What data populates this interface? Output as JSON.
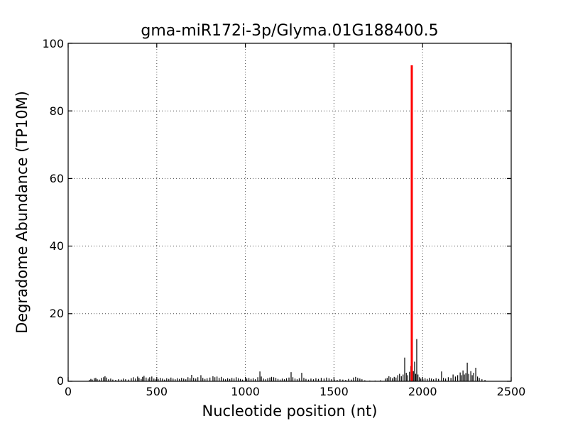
{
  "chart_data": {
    "type": "bar",
    "title": "gma-miR172i-3p/Glyma.01G188400.5",
    "xlabel": "Nucleotide position (nt)",
    "ylabel": "Degradome Abundance (TP10M)",
    "xlim": [
      0,
      2500
    ],
    "ylim": [
      0,
      100
    ],
    "x_ticks": [
      "0",
      "500",
      "1000",
      "1500",
      "2000",
      "2500"
    ],
    "y_ticks": [
      "0",
      "20",
      "40",
      "60",
      "80",
      "100"
    ],
    "x_tick_values": [
      0,
      500,
      1000,
      1500,
      2000,
      2500
    ],
    "y_tick_values": [
      0,
      20,
      40,
      60,
      80,
      100
    ],
    "grid": {
      "style": "dotted",
      "x_values": [
        500,
        1000,
        1500,
        2000
      ],
      "y_values": [
        20,
        40,
        60,
        80
      ]
    },
    "legend": "none",
    "colors": {
      "background": "#ffffff",
      "axis": "#000000",
      "bars": "#000000",
      "target_peak": "#ff0000",
      "grid": "#4a4a4a"
    },
    "target_peak": {
      "x": 1939,
      "y": 93.5
    },
    "points": [
      [
        120,
        0.4
      ],
      [
        128,
        0.7
      ],
      [
        136,
        0.5
      ],
      [
        148,
        0.9
      ],
      [
        156,
        1.0
      ],
      [
        164,
        0.6
      ],
      [
        176,
        0.5
      ],
      [
        188,
        1.0
      ],
      [
        200,
        1.2
      ],
      [
        208,
        1.5
      ],
      [
        216,
        1.1
      ],
      [
        228,
        0.6
      ],
      [
        240,
        0.8
      ],
      [
        252,
        0.5
      ],
      [
        268,
        0.4
      ],
      [
        284,
        0.6
      ],
      [
        300,
        0.5
      ],
      [
        312,
        0.8
      ],
      [
        324,
        0.6
      ],
      [
        340,
        0.5
      ],
      [
        356,
        0.9
      ],
      [
        368,
        1.2
      ],
      [
        380,
        0.8
      ],
      [
        392,
        1.4
      ],
      [
        400,
        1.0
      ],
      [
        412,
        0.7
      ],
      [
        420,
        1.3
      ],
      [
        428,
        1.6
      ],
      [
        440,
        1.1
      ],
      [
        452,
        0.8
      ],
      [
        460,
        1.2
      ],
      [
        472,
        1.4
      ],
      [
        484,
        0.8
      ],
      [
        496,
        0.6
      ],
      [
        508,
        0.7
      ],
      [
        520,
        1.0
      ],
      [
        532,
        0.8
      ],
      [
        544,
        0.5
      ],
      [
        556,
        0.9
      ],
      [
        568,
        0.7
      ],
      [
        580,
        1.1
      ],
      [
        592,
        0.8
      ],
      [
        604,
        0.6
      ],
      [
        616,
        0.9
      ],
      [
        628,
        0.7
      ],
      [
        640,
        1.0
      ],
      [
        652,
        0.8
      ],
      [
        664,
        0.6
      ],
      [
        676,
        1.2
      ],
      [
        688,
        0.9
      ],
      [
        697,
        1.9
      ],
      [
        708,
        1.0
      ],
      [
        720,
        0.8
      ],
      [
        732,
        1.2
      ],
      [
        749,
        1.8
      ],
      [
        760,
        1.0
      ],
      [
        772,
        0.7
      ],
      [
        784,
        0.9
      ],
      [
        800,
        1.1
      ],
      [
        817,
        1.5
      ],
      [
        828,
        1.2
      ],
      [
        840,
        1.4
      ],
      [
        852,
        1.0
      ],
      [
        864,
        1.3
      ],
      [
        876,
        0.8
      ],
      [
        888,
        0.6
      ],
      [
        900,
        0.9
      ],
      [
        912,
        0.7
      ],
      [
        924,
        1.0
      ],
      [
        936,
        0.8
      ],
      [
        948,
        1.2
      ],
      [
        960,
        0.9
      ],
      [
        972,
        0.7
      ],
      [
        984,
        0.5
      ],
      [
        1008,
        0.8
      ],
      [
        1020,
        1.0
      ],
      [
        1032,
        0.7
      ],
      [
        1044,
        0.9
      ],
      [
        1056,
        0.6
      ],
      [
        1070,
        1.2
      ],
      [
        1082,
        2.9
      ],
      [
        1090,
        1.4
      ],
      [
        1102,
        0.8
      ],
      [
        1114,
        0.6
      ],
      [
        1126,
        0.9
      ],
      [
        1138,
        1.1
      ],
      [
        1148,
        1.3
      ],
      [
        1160,
        1.2
      ],
      [
        1172,
        1.0
      ],
      [
        1184,
        0.7
      ],
      [
        1196,
        0.5
      ],
      [
        1208,
        0.8
      ],
      [
        1220,
        0.6
      ],
      [
        1232,
        0.9
      ],
      [
        1246,
        1.1
      ],
      [
        1258,
        2.7
      ],
      [
        1268,
        1.2
      ],
      [
        1280,
        0.8
      ],
      [
        1292,
        0.6
      ],
      [
        1304,
        0.9
      ],
      [
        1318,
        2.5
      ],
      [
        1330,
        1.0
      ],
      [
        1342,
        0.7
      ],
      [
        1356,
        0.5
      ],
      [
        1370,
        0.8
      ],
      [
        1384,
        0.6
      ],
      [
        1398,
        0.9
      ],
      [
        1412,
        0.7
      ],
      [
        1428,
        1.0
      ],
      [
        1444,
        0.8
      ],
      [
        1458,
        1.1
      ],
      [
        1472,
        0.9
      ],
      [
        1486,
        0.6
      ],
      [
        1502,
        0.5
      ],
      [
        1518,
        0.4
      ],
      [
        1534,
        0.6
      ],
      [
        1550,
        0.5
      ],
      [
        1566,
        0.4
      ],
      [
        1582,
        0.7
      ],
      [
        1598,
        0.5
      ],
      [
        1610,
        1.1
      ],
      [
        1622,
        1.3
      ],
      [
        1634,
        1.0
      ],
      [
        1646,
        0.8
      ],
      [
        1658,
        0.6
      ],
      [
        1674,
        0.3
      ],
      [
        1702,
        0.2
      ],
      [
        1732,
        0.2
      ],
      [
        1762,
        0.3
      ],
      [
        1790,
        0.8
      ],
      [
        1800,
        1.0
      ],
      [
        1810,
        1.5
      ],
      [
        1820,
        1.2
      ],
      [
        1830,
        0.9
      ],
      [
        1840,
        1.3
      ],
      [
        1850,
        1.1
      ],
      [
        1860,
        1.8
      ],
      [
        1870,
        2.2
      ],
      [
        1880,
        1.5
      ],
      [
        1890,
        2.0
      ],
      [
        1899,
        7.0
      ],
      [
        1908,
        2.5
      ],
      [
        1916,
        1.8
      ],
      [
        1926,
        2.8
      ],
      [
        1934,
        4.5
      ],
      [
        1948,
        3.0
      ],
      [
        1955,
        5.8
      ],
      [
        1961,
        2.2
      ],
      [
        1967,
        12.5
      ],
      [
        1974,
        2.0
      ],
      [
        1982,
        1.2
      ],
      [
        1990,
        0.8
      ],
      [
        2002,
        0.6
      ],
      [
        2014,
        0.9
      ],
      [
        2026,
        0.7
      ],
      [
        2038,
        1.0
      ],
      [
        2050,
        0.8
      ],
      [
        2062,
        0.6
      ],
      [
        2076,
        0.9
      ],
      [
        2090,
        0.7
      ],
      [
        2107,
        2.9
      ],
      [
        2118,
        1.0
      ],
      [
        2130,
        0.8
      ],
      [
        2145,
        1.2
      ],
      [
        2160,
        1.0
      ],
      [
        2172,
        2.0
      ],
      [
        2185,
        1.4
      ],
      [
        2198,
        1.8
      ],
      [
        2212,
        2.6
      ],
      [
        2220,
        1.8
      ],
      [
        2228,
        3.2
      ],
      [
        2236,
        2.0
      ],
      [
        2244,
        2.4
      ],
      [
        2252,
        5.5
      ],
      [
        2260,
        2.2
      ],
      [
        2272,
        3.0
      ],
      [
        2280,
        1.8
      ],
      [
        2288,
        2.5
      ],
      [
        2300,
        4.0
      ],
      [
        2310,
        1.4
      ],
      [
        2320,
        1.0
      ],
      [
        2335,
        0.6
      ],
      [
        2352,
        0.4
      ]
    ]
  }
}
